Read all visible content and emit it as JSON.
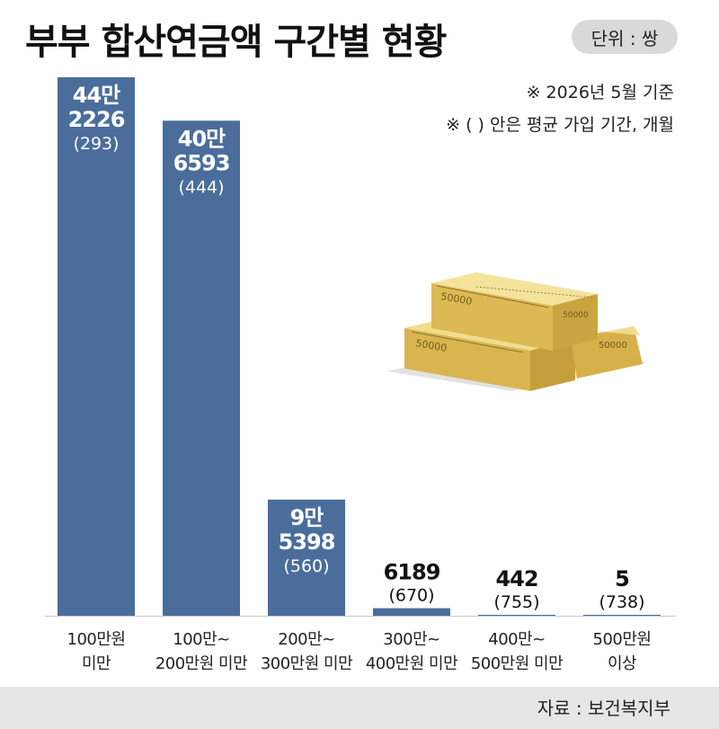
{
  "title": "부부 합산연금액 구간별 현황",
  "unit": "단위 : 쌍",
  "notes": [
    "※ 2026년 5월 기준",
    "※ (  ) 안은 평균 가입 기간, 개월"
  ],
  "source": "자료 : 보건복지부",
  "colors": {
    "bar": "#4a6d9c",
    "footer": "#e6e6e6",
    "gold": "#e2c25e"
  },
  "illustration": {
    "banknote_text": "50000"
  },
  "chart_data": {
    "type": "bar",
    "title": "부부 합산연금액 구간별 현황",
    "categories": [
      [
        "100만원",
        "미만"
      ],
      [
        "100만~",
        "200만원 미만"
      ],
      [
        "200만~",
        "300만원 미만"
      ],
      [
        "300만~",
        "400만원 미만"
      ],
      [
        "400만~",
        "500만원 미만"
      ],
      [
        "500만원",
        "이상"
      ]
    ],
    "values": [
      442226,
      406593,
      95398,
      6189,
      442,
      5
    ],
    "value_labels": [
      [
        "44만",
        "2226"
      ],
      [
        "40만",
        "6593"
      ],
      [
        "9만",
        "5398"
      ],
      [
        "6189"
      ],
      [
        "442"
      ],
      [
        "5"
      ]
    ],
    "sub_labels": [
      "(293)",
      "(444)",
      "(560)",
      "(670)",
      "(755)",
      "(738)"
    ],
    "ylim": [
      0,
      442226
    ],
    "grid": false,
    "legend": "none"
  }
}
